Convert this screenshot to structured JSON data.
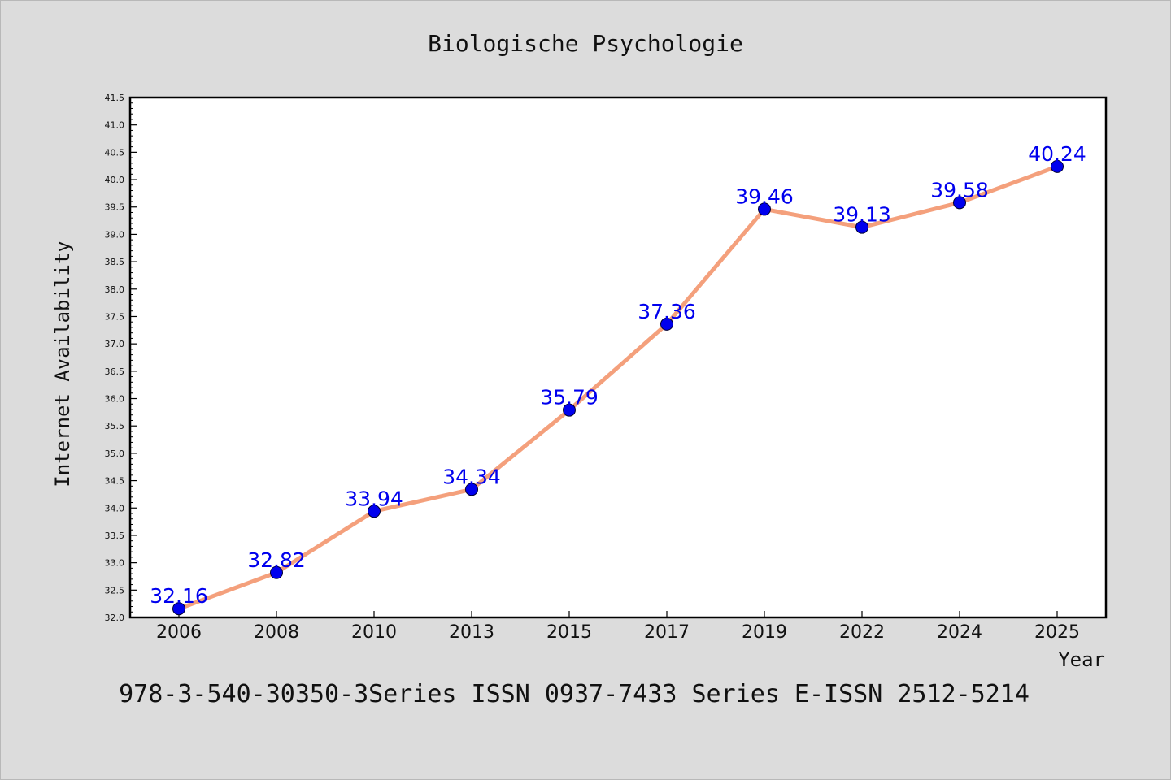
{
  "chart_data": {
    "type": "line",
    "title": "Biologische Psychologie",
    "xlabel": "Year",
    "ylabel": "Internet Availability",
    "categories": [
      "2006",
      "2008",
      "2010",
      "2013",
      "2015",
      "2017",
      "2019",
      "2022",
      "2024",
      "2025"
    ],
    "series": [
      {
        "values": [
          32.16,
          32.82,
          33.94,
          34.34,
          35.79,
          37.36,
          39.46,
          39.13,
          39.58,
          40.24
        ],
        "labels": [
          "32.16",
          "32.82",
          "33.94",
          "34.34",
          "35.79",
          "37.36",
          "39.46",
          "39.13",
          "39.58",
          "40.24"
        ]
      }
    ],
    "ylim": [
      32.0,
      41.5
    ],
    "yticks": [
      "32.0",
      "32.5",
      "33.0",
      "33.5",
      "34.0",
      "34.5",
      "35.0",
      "35.5",
      "36.0",
      "36.5",
      "37.0",
      "37.5",
      "38.0",
      "38.5",
      "39.0",
      "39.5",
      "40.0",
      "40.5",
      "41.0",
      "41.5"
    ],
    "grid": false,
    "legend": "none",
    "colors": {
      "line": "#f4a07c",
      "marker": "#0000ee",
      "label": "#0000ee",
      "background": "#dcdcdc",
      "plot_background": "#ffffff"
    }
  },
  "footer": {
    "text": "978-3-540-30350-3Series ISSN 0937-7433 Series E-ISSN 2512-5214"
  }
}
